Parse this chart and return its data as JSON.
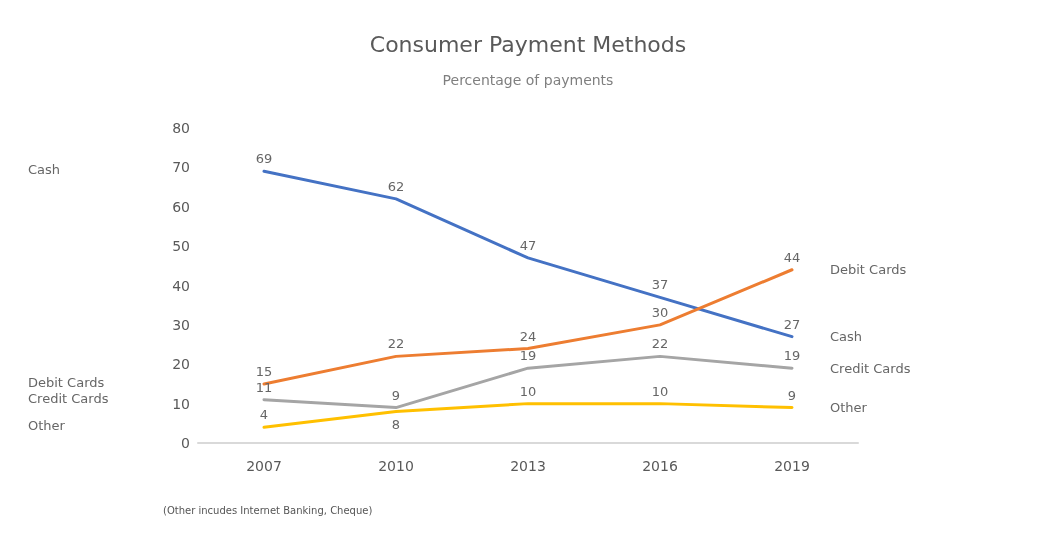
{
  "chart_data": {
    "type": "line",
    "title": "Consumer Payment Methods",
    "subtitle": "Percentage of payments",
    "categories": [
      "2007",
      "2010",
      "2013",
      "2016",
      "2019"
    ],
    "series": [
      {
        "name": "Cash",
        "color": "#4472c4",
        "values": [
          69,
          62,
          47,
          37,
          27
        ]
      },
      {
        "name": "Debit Cards",
        "color": "#ed7d31",
        "values": [
          15,
          22,
          24,
          30,
          44
        ]
      },
      {
        "name": "Credit Cards",
        "color": "#a5a5a5",
        "values": [
          11,
          9,
          19,
          22,
          19
        ]
      },
      {
        "name": "Other",
        "color": "#ffc000",
        "values": [
          4,
          8,
          10,
          10,
          9
        ]
      }
    ],
    "ylim": [
      0,
      80
    ],
    "yticks": [
      0,
      10,
      20,
      30,
      40,
      50,
      60,
      70,
      80
    ],
    "data_labels": true,
    "legend": false,
    "marker": "none",
    "annotations": [
      "(Other incudes Internet Banking, Cheque)"
    ]
  }
}
